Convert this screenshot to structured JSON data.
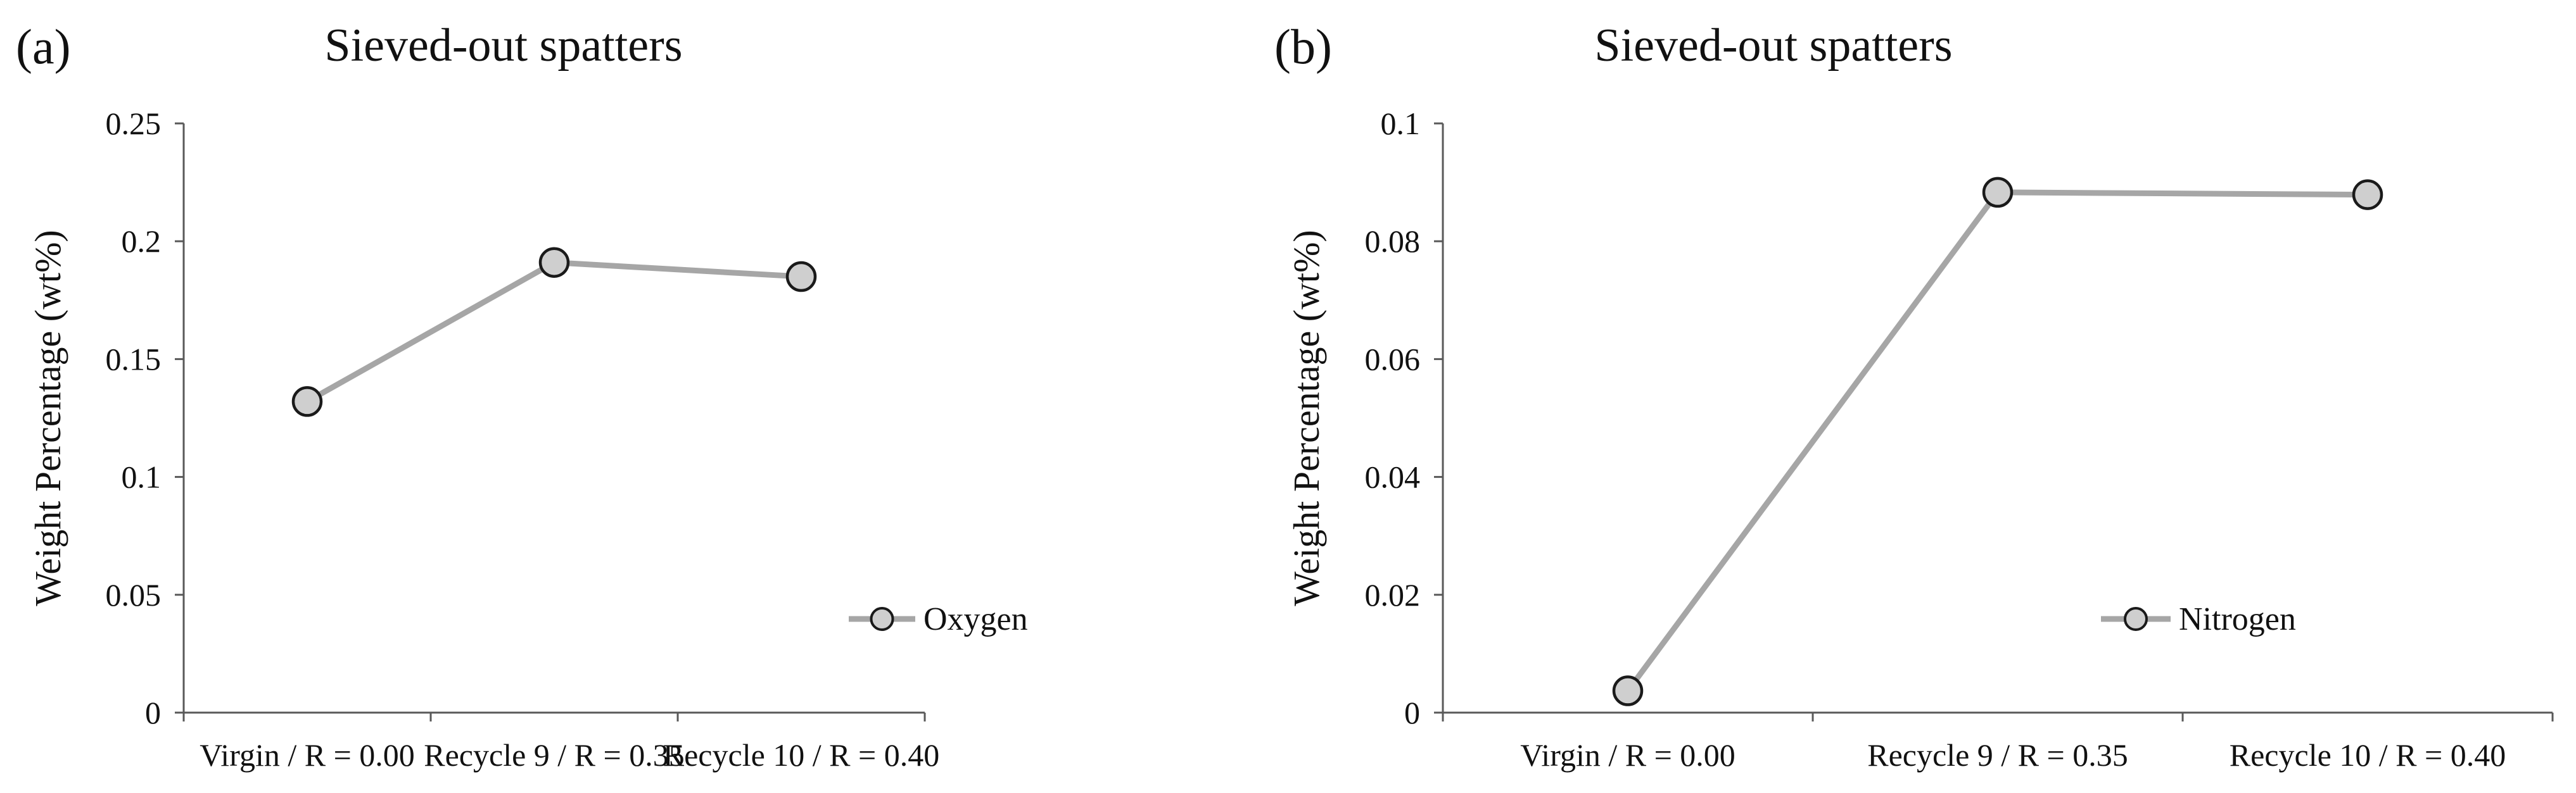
{
  "chart_data": [
    {
      "panel_label": "(a)",
      "type": "line",
      "title": "Sieved-out spatters",
      "xlabel": "",
      "ylabel": "Weight Percentage (wt%)",
      "categories": [
        "Virgin / R = 0.00",
        "Recycle 9 / R = 0.35",
        "Recycle 10 / R = 0.40"
      ],
      "series": [
        {
          "name": "Oxygen",
          "values": [
            0.132,
            0.191,
            0.185
          ]
        }
      ],
      "ylim": [
        0,
        0.25
      ],
      "yticks": [
        "0",
        "0.05",
        "0.1",
        "0.15",
        "0.2",
        "0.25"
      ],
      "grid": false,
      "legend": "bottom-right",
      "colors": {
        "line": "#a6a6a6",
        "marker_fill": "#cfcfcf",
        "marker_edge": "#1a1a1a",
        "axis": "#595959"
      }
    },
    {
      "panel_label": "(b)",
      "type": "line",
      "title": "Sieved-out spatters",
      "xlabel": "",
      "ylabel": "Weight Percentage (wt%)",
      "categories": [
        "Virgin / R = 0.00",
        "Recycle 9 / R = 0.35",
        "Recycle 10 / R = 0.40"
      ],
      "series": [
        {
          "name": "Nitrogen",
          "values": [
            0.0037,
            0.0883,
            0.0879
          ]
        }
      ],
      "ylim": [
        0,
        0.1
      ],
      "yticks": [
        "0",
        "0.02",
        "0.04",
        "0.06",
        "0.08",
        "0.1"
      ],
      "grid": false,
      "legend": "bottom-right",
      "colors": {
        "line": "#a6a6a6",
        "marker_fill": "#cfcfcf",
        "marker_edge": "#1a1a1a",
        "axis": "#595959"
      }
    }
  ]
}
